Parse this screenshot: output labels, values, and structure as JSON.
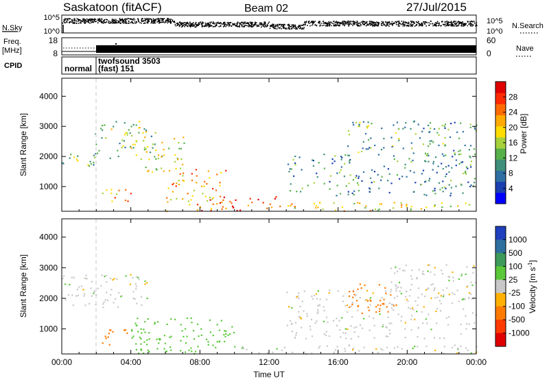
{
  "header": {
    "station": "Saskatoon (fitACF)",
    "beam": "Beam 02",
    "date": "27/Jul/2015"
  },
  "top_panels": {
    "nsky_label": "N.Sky",
    "nsky_ticks": [
      "10^5",
      "10^0"
    ],
    "nsearch_label": "N.Search",
    "nsearch_ticks": [
      "10^5",
      "10^0"
    ],
    "freq_label_line1": "Freq.",
    "freq_label_line2": "[MHz]",
    "freq_ticks": [
      "18",
      "8"
    ],
    "nave_label": "Nave",
    "nave_ticks": [
      "60",
      "0"
    ],
    "cpid_label": "CPID",
    "cpid_modes": [
      {
        "name": "normal",
        "start": 0,
        "end": 1.8
      },
      {
        "name": "twofsound 3503\n(fast) 151",
        "start": 1.8,
        "end": 24
      }
    ],
    "cpid_mode_text_1": "normal",
    "cpid_mode_text_2a": "twofsound 3503",
    "cpid_mode_text_2b": "(fast) 151"
  },
  "chart_data": [
    {
      "type": "heatmap",
      "title": "Power",
      "xlabel": "Time UT",
      "ylabel": "Slant Range [km]",
      "x_ticks": [
        "00:00",
        "04:00",
        "08:00",
        "12:00",
        "16:00",
        "20:00",
        "00:00"
      ],
      "xlim_hours": [
        0,
        24
      ],
      "y_ticks": [
        "1000",
        "2000",
        "3000",
        "4000"
      ],
      "ylim": [
        180,
        4600
      ],
      "colorbar": {
        "label": "Power [dB]",
        "ticks": [
          "4",
          "8",
          "12",
          "16",
          "20",
          "24",
          "28"
        ],
        "range": [
          0,
          30
        ],
        "colors": [
          "#0000ff",
          "#1a3fb0",
          "#2e6fa3",
          "#3d8f7a",
          "#57b04a",
          "#a6d13a",
          "#ffdd00",
          "#ffaa00",
          "#ff6a00",
          "#ff2a00",
          "#e00000"
        ]
      },
      "echo_regions": [
        {
          "t0": 0.0,
          "t1": 2.2,
          "r0": 1650,
          "r1": 2200,
          "value": 12
        },
        {
          "t0": 1.8,
          "t1": 5.5,
          "r0": 1900,
          "r1": 3200,
          "value": 14
        },
        {
          "t0": 4.8,
          "t1": 7.2,
          "r0": 1500,
          "r1": 2700,
          "value": 16
        },
        {
          "t0": 2.3,
          "t1": 4.0,
          "r0": 500,
          "r1": 1000,
          "value": 22
        },
        {
          "t0": 6.0,
          "t1": 9.5,
          "r0": 200,
          "r1": 1600,
          "value": 20
        },
        {
          "t0": 8.0,
          "t1": 12.5,
          "r0": 200,
          "r1": 700,
          "value": 26
        },
        {
          "t0": 12.5,
          "t1": 24.0,
          "r0": 200,
          "r1": 500,
          "value": 18
        },
        {
          "t0": 13.0,
          "t1": 24.0,
          "r0": 700,
          "r1": 2100,
          "value": 9
        },
        {
          "t0": 16.5,
          "t1": 24.0,
          "r0": 2000,
          "r1": 3200,
          "value": 11
        }
      ]
    },
    {
      "type": "heatmap",
      "title": "Velocity",
      "xlabel": "Time UT",
      "ylabel": "Slant Range [km]",
      "x_ticks": [
        "00:00",
        "04:00",
        "08:00",
        "12:00",
        "16:00",
        "20:00",
        "00:00"
      ],
      "xlim_hours": [
        0,
        24
      ],
      "y_ticks": [
        "1000",
        "2000",
        "3000",
        "4000"
      ],
      "ylim": [
        180,
        4600
      ],
      "colorbar": {
        "label": "Velocity [m s-1]",
        "label_main": "Velocity  [m s",
        "label_sup": "-1",
        "label_end": "]",
        "ticks": [
          "1000",
          "500",
          "100",
          "25",
          "-25",
          "-100",
          "-500",
          "-1000"
        ],
        "colors": [
          "#1f3fbf",
          "#2f6fa0",
          "#3d9a5a",
          "#5ac838",
          "#c8c8c8",
          "#ffb000",
          "#ff7a00",
          "#ff3a00",
          "#e00000"
        ]
      },
      "echo_regions": [
        {
          "t0": 0.0,
          "t1": 5.0,
          "r0": 1700,
          "r1": 2800,
          "value": 0
        },
        {
          "t0": 2.3,
          "t1": 4.0,
          "r0": 500,
          "r1": 1000,
          "value": -300
        },
        {
          "t0": 4.0,
          "t1": 10.0,
          "r0": 200,
          "r1": 1400,
          "value": 60
        },
        {
          "t0": 10.0,
          "t1": 24.0,
          "r0": 200,
          "r1": 500,
          "value": 0
        },
        {
          "t0": 13.0,
          "t1": 24.0,
          "r0": 700,
          "r1": 2300,
          "value": 0
        },
        {
          "t0": 16.5,
          "t1": 19.5,
          "r0": 1500,
          "r1": 2500,
          "value": -300
        },
        {
          "t0": 19.0,
          "t1": 24.0,
          "r0": 2000,
          "r1": 3200,
          "value": 0
        }
      ]
    }
  ],
  "colors": {
    "axis": "#000000",
    "dash_line": "#c8c8c8"
  }
}
